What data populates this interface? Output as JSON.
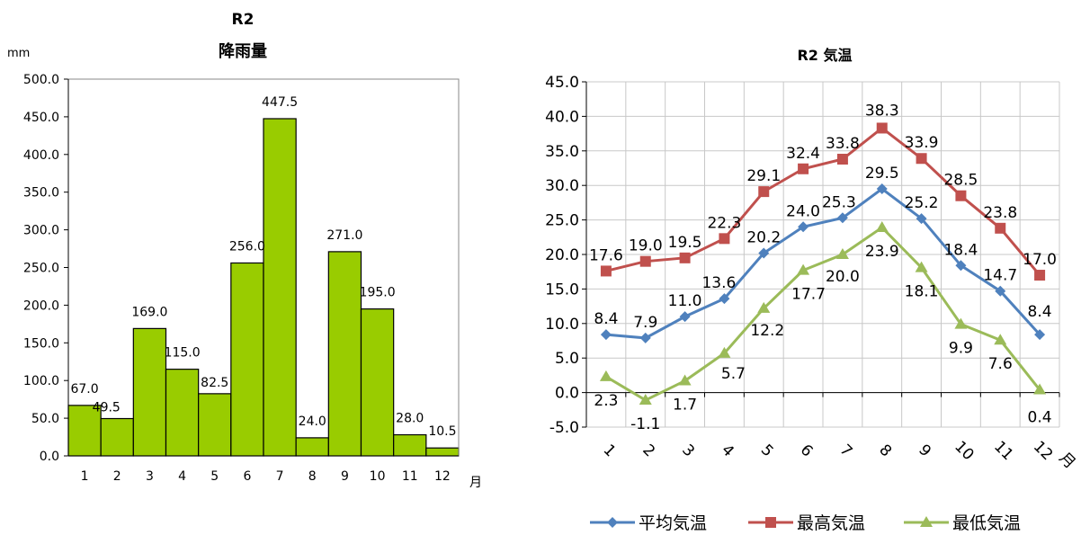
{
  "chart_data": [
    {
      "type": "bar",
      "title": "R2\n降雨量",
      "title_lines": [
        "R2",
        "降雨量"
      ],
      "ylabel": "mm",
      "xlabel": "月",
      "categories": [
        "1",
        "2",
        "3",
        "4",
        "5",
        "6",
        "7",
        "8",
        "9",
        "10",
        "11",
        "12"
      ],
      "values": [
        67.0,
        49.5,
        169.0,
        115.0,
        82.5,
        256.0,
        447.5,
        24.0,
        271.0,
        195.0,
        28.0,
        10.5
      ],
      "data_labels": [
        "67.0",
        "49.5",
        "169.0",
        "115.0",
        "82.5",
        "256.0",
        "447.5",
        "24.0",
        "271.0",
        "195.0",
        "28.0",
        "10.5"
      ],
      "ylim": [
        0,
        500
      ],
      "yticks": [
        "0.0",
        "50.0",
        "100.0",
        "150.0",
        "200.0",
        "250.0",
        "300.0",
        "350.0",
        "400.0",
        "450.0",
        "500.0"
      ],
      "grid": false,
      "bar_color": "#99cc00",
      "bar_edge_color": "#000000"
    },
    {
      "type": "line",
      "title": "R2  気温",
      "xlabel": "月",
      "categories": [
        "1",
        "2",
        "3",
        "4",
        "5",
        "6",
        "7",
        "8",
        "9",
        "10",
        "11",
        "12"
      ],
      "ylim": [
        -5,
        45
      ],
      "yticks": [
        "-5.0",
        "0.0",
        "5.0",
        "10.0",
        "15.0",
        "20.0",
        "25.0",
        "30.0",
        "35.0",
        "40.0",
        "45.0"
      ],
      "grid": true,
      "legend_position": "bottom",
      "series": [
        {
          "name": "平均気温",
          "color": "#4f81bd",
          "marker": "diamond",
          "values": [
            8.4,
            7.9,
            11.0,
            13.6,
            20.2,
            24.0,
            25.3,
            29.5,
            25.2,
            18.4,
            14.7,
            8.4
          ],
          "data_labels": [
            "8.4",
            "7.9",
            "11.0",
            "13.6",
            "20.2",
            "24.0",
            "25.3",
            "29.5",
            "25.2",
            "18.4",
            "14.7",
            "8.4"
          ]
        },
        {
          "name": "最高気温",
          "color": "#c0504d",
          "marker": "square",
          "values": [
            17.6,
            19.0,
            19.5,
            22.3,
            29.1,
            32.4,
            33.8,
            38.3,
            33.9,
            28.5,
            23.8,
            17.0
          ],
          "data_labels": [
            "17.6",
            "19.0",
            "19.5",
            "22.3",
            "29.1",
            "32.4",
            "33.8",
            "38.3",
            "33.9",
            "28.5",
            "23.8",
            "17.0"
          ]
        },
        {
          "name": "最低気温",
          "color": "#9bbb59",
          "marker": "triangle",
          "values": [
            2.3,
            -1.1,
            1.7,
            5.7,
            12.2,
            17.7,
            20.0,
            23.9,
            18.1,
            9.9,
            7.6,
            0.4
          ],
          "data_labels": [
            "2.3",
            "-1.1",
            "1.7",
            "5.7",
            "12.2",
            "17.7",
            "20.0",
            "23.9",
            "18.1",
            "9.9",
            "7.6",
            "0.4"
          ]
        }
      ]
    }
  ]
}
